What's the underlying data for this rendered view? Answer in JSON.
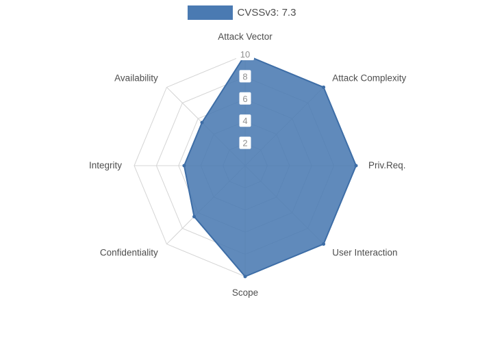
{
  "legend": {
    "label": "CVSSv3: 7.3",
    "swatch_color": "#4a7ab2"
  },
  "chart_data": {
    "type": "radar",
    "title": "CVSSv3: 7.3",
    "categories": [
      "Attack Vector",
      "Attack Complexity",
      "Priv.Req.",
      "User Interaction",
      "Scope",
      "Confidentiality",
      "Integrity",
      "Availability"
    ],
    "series": [
      {
        "name": "CVSSv3: 7.3",
        "values": [
          10,
          10,
          10,
          10,
          10,
          6.5,
          5.5,
          5.5
        ],
        "fill_color": "#4a7ab2",
        "stroke_color": "#3d6da6",
        "fill_opacity": 0.88
      }
    ],
    "ticks": [
      2,
      4,
      6,
      8,
      10
    ],
    "rmax": 10,
    "axis_start": "top",
    "direction": "clockwise",
    "grid": true,
    "grid_shape": "polygon",
    "grid_color": "#d4d4d4",
    "tick_color": "#8f8f8f",
    "tick_bg": "#ffffff",
    "label_color": "#4d4d4d",
    "legend_position": "top"
  }
}
